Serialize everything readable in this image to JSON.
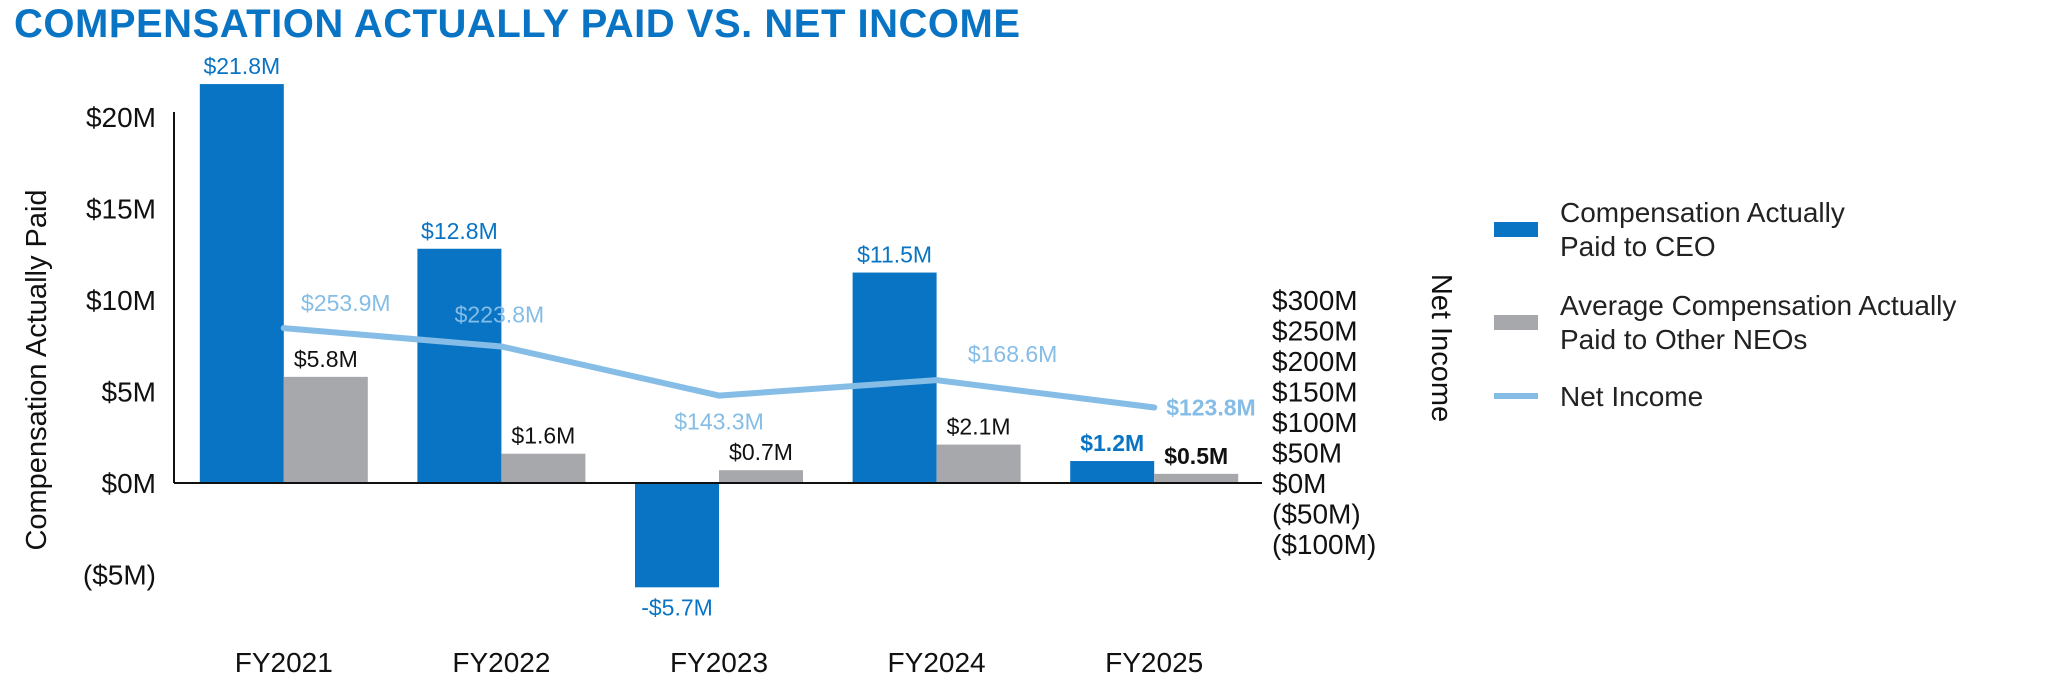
{
  "chart_data": {
    "type": "bar",
    "title": "COMPENSATION ACTUALLY PAID VS. NET INCOME",
    "categories": [
      "FY2021",
      "FY2022",
      "FY2023",
      "FY2024",
      "FY2025"
    ],
    "series": [
      {
        "name": "Compensation Actually Paid to CEO",
        "type": "bar",
        "axis": "left",
        "values": [
          21.8,
          12.8,
          -5.7,
          11.5,
          1.2
        ],
        "labels": [
          "$21.8M",
          "$12.8M",
          "-$5.7M",
          "$11.5M",
          "$1.2M"
        ]
      },
      {
        "name": "Average Compensation Actually Paid to Other NEOs",
        "type": "bar",
        "axis": "left",
        "values": [
          5.8,
          1.6,
          0.7,
          2.1,
          0.5
        ],
        "labels": [
          "$5.8M",
          "$1.6M",
          "$0.7M",
          "$2.1M",
          "$0.5M"
        ]
      },
      {
        "name": "Net Income",
        "type": "line",
        "axis": "right",
        "values": [
          253.9,
          223.8,
          143.3,
          168.6,
          123.8
        ],
        "labels": [
          "$253.9M",
          "$223.8M",
          "$143.3M",
          "$168.6M",
          "$123.8M"
        ]
      }
    ],
    "y_left": {
      "label": "Compensation Actually Paid",
      "ylim": [
        -5,
        20
      ],
      "ticks": [
        20,
        15,
        10,
        5,
        0,
        -5
      ],
      "tick_labels": [
        "$20M",
        "$15M",
        "$10M",
        "$5M",
        "$0M",
        "($5M)"
      ]
    },
    "y_right": {
      "label": "Net Income",
      "ylim": [
        -100,
        300
      ],
      "ticks": [
        300,
        250,
        200,
        150,
        100,
        50,
        0,
        -50,
        -100
      ],
      "tick_labels": [
        "$300M",
        "$250M",
        "$200M",
        "$150M",
        "$100M",
        "$50M",
        "$0M",
        "($50M)",
        "($100M)"
      ]
    },
    "legend": {
      "position": "right",
      "entries": [
        {
          "lines": [
            "Compensation Actually",
            "Paid to CEO"
          ],
          "kind": "bar",
          "color": "#0a74c4"
        },
        {
          "lines": [
            "Average Compensation Actually",
            "Paid to Other NEOs"
          ],
          "kind": "bar",
          "color": "#a7a8ab"
        },
        {
          "lines": [
            "Net Income"
          ],
          "kind": "line",
          "color": "#85bde6"
        }
      ]
    },
    "colors": {
      "ceo": "#0a74c4",
      "neo": "#a7a8ab",
      "net_income": "#85bde6",
      "title": "#0a74c4",
      "axis": "#111111"
    }
  }
}
